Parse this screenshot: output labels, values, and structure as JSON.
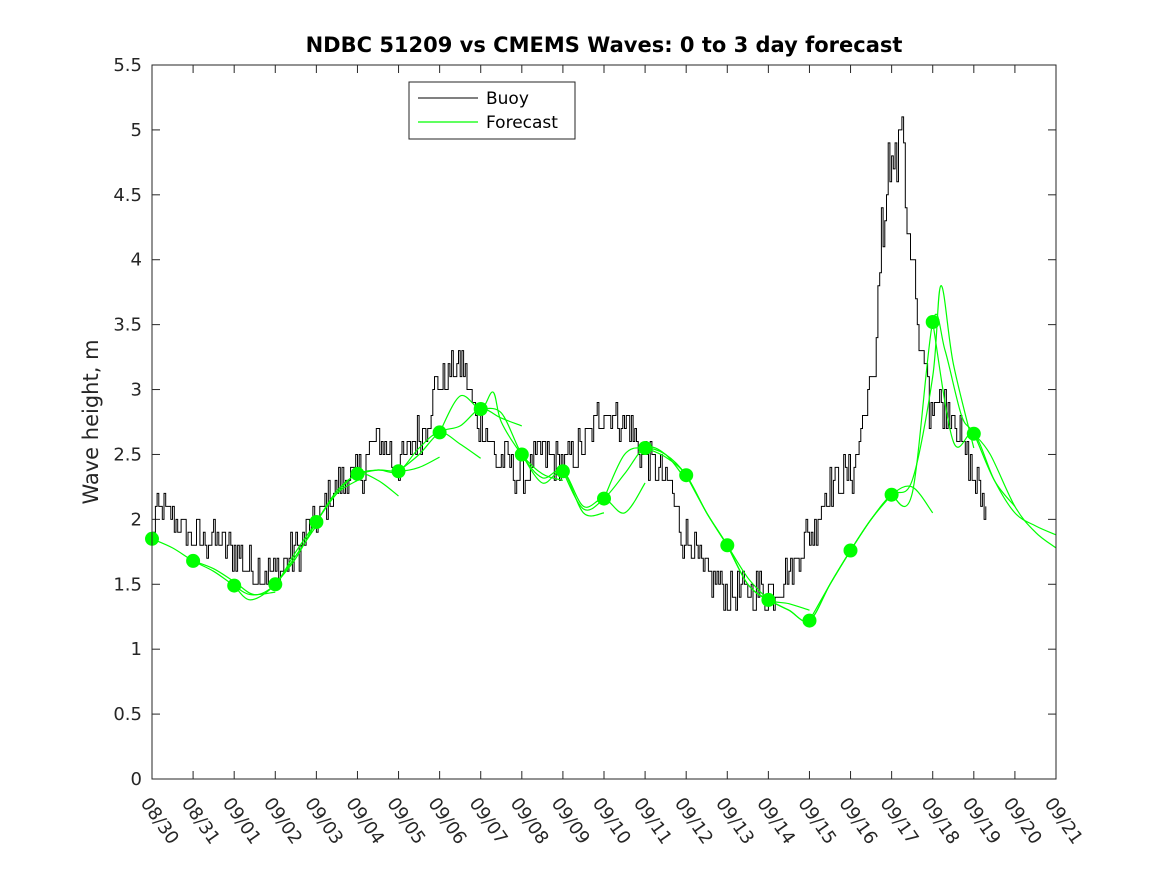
{
  "chart_data": {
    "type": "line",
    "title": "NDBC 51209 vs CMEMS Waves: 0 to 3 day forecast",
    "xlabel": "",
    "ylabel": "Wave height, m",
    "ylim": [
      0,
      5.5
    ],
    "yticks": [
      "0",
      "0.5",
      "1",
      "1.5",
      "2",
      "2.5",
      "3",
      "3.5",
      "4",
      "4.5",
      "5",
      "5.5"
    ],
    "xlim_days": [
      0,
      22
    ],
    "xtick_labels": [
      "08/30",
      "08/31",
      "09/01",
      "09/02",
      "09/03",
      "09/04",
      "09/05",
      "09/06",
      "09/07",
      "09/08",
      "09/09",
      "09/10",
      "09/11",
      "09/12",
      "09/13",
      "09/14",
      "09/15",
      "09/16",
      "09/17",
      "09/18",
      "09/19",
      "09/20",
      "09/21"
    ],
    "legend": {
      "position": "top-left",
      "entries": [
        "Buoy",
        "Forecast"
      ]
    },
    "colors": {
      "buoy": "#000000",
      "forecast": "#00ff00"
    },
    "buoy": {
      "name": "Buoy",
      "anchors": [
        [
          0,
          1.9
        ],
        [
          0.1,
          2.1
        ],
        [
          0.5,
          2.0
        ],
        [
          1.0,
          1.85
        ],
        [
          1.5,
          1.85
        ],
        [
          2.0,
          1.75
        ],
        [
          2.5,
          1.6
        ],
        [
          3.0,
          1.6
        ],
        [
          3.5,
          1.75
        ],
        [
          4.0,
          2.0
        ],
        [
          4.5,
          2.25
        ],
        [
          5.0,
          2.35
        ],
        [
          5.5,
          2.6
        ],
        [
          6.0,
          2.45
        ],
        [
          6.5,
          2.65
        ],
        [
          7.0,
          3.05
        ],
        [
          7.5,
          3.2
        ],
        [
          8.0,
          2.7
        ],
        [
          8.5,
          2.45
        ],
        [
          9.0,
          2.35
        ],
        [
          9.5,
          2.5
        ],
        [
          10.0,
          2.45
        ],
        [
          10.5,
          2.55
        ],
        [
          11.0,
          2.85
        ],
        [
          11.5,
          2.75
        ],
        [
          12.0,
          2.5
        ],
        [
          12.5,
          2.3
        ],
        [
          13.0,
          1.85
        ],
        [
          13.5,
          1.55
        ],
        [
          14.0,
          1.45
        ],
        [
          14.5,
          1.45
        ],
        [
          15.0,
          1.45
        ],
        [
          15.5,
          1.6
        ],
        [
          16.0,
          1.9
        ],
        [
          16.5,
          2.25
        ],
        [
          17.0,
          2.35
        ],
        [
          17.5,
          3.0
        ],
        [
          17.8,
          4.2
        ],
        [
          18.0,
          4.7
        ],
        [
          18.2,
          4.6
        ],
        [
          18.5,
          3.8
        ],
        [
          18.8,
          3.1
        ],
        [
          19.0,
          2.95
        ],
        [
          19.5,
          2.8
        ],
        [
          19.8,
          2.5
        ],
        [
          20.0,
          2.3
        ],
        [
          20.3,
          2.1
        ]
      ],
      "peak": [
        18.2,
        5.1
      ],
      "samples_per_day": 24,
      "noise_m": 0.1
    },
    "forecast_markers": [
      {
        "x": 0,
        "y": 1.85
      },
      {
        "x": 1,
        "y": 1.68
      },
      {
        "x": 2,
        "y": 1.49
      },
      {
        "x": 3,
        "y": 1.5
      },
      {
        "x": 4,
        "y": 1.98
      },
      {
        "x": 5,
        "y": 2.35
      },
      {
        "x": 6,
        "y": 2.37
      },
      {
        "x": 7,
        "y": 2.67
      },
      {
        "x": 8,
        "y": 2.85
      },
      {
        "x": 9,
        "y": 2.5
      },
      {
        "x": 10,
        "y": 2.37
      },
      {
        "x": 11,
        "y": 2.16
      },
      {
        "x": 12,
        "y": 2.55
      },
      {
        "x": 13,
        "y": 2.34
      },
      {
        "x": 14,
        "y": 1.8
      },
      {
        "x": 15,
        "y": 1.38
      },
      {
        "x": 16,
        "y": 1.22
      },
      {
        "x": 17,
        "y": 1.76
      },
      {
        "x": 18,
        "y": 2.19
      },
      {
        "x": 19,
        "y": 3.52
      },
      {
        "x": 20,
        "y": 2.66
      }
    ],
    "forecast_runs": [
      {
        "name": "Forecast",
        "points": [
          [
            0,
            1.85
          ],
          [
            0.5,
            1.78
          ],
          [
            1,
            1.68
          ],
          [
            1.5,
            1.6
          ],
          [
            2,
            1.49
          ],
          [
            2.4,
            1.42
          ],
          [
            3,
            1.44
          ]
        ]
      },
      {
        "name": "Forecast",
        "points": [
          [
            1,
            1.68
          ],
          [
            1.5,
            1.62
          ],
          [
            2,
            1.52
          ],
          [
            2.5,
            1.42
          ],
          [
            3,
            1.5
          ],
          [
            3.5,
            1.72
          ],
          [
            4,
            1.95
          ]
        ]
      },
      {
        "name": "Forecast",
        "points": [
          [
            2,
            1.49
          ],
          [
            2.4,
            1.38
          ],
          [
            3,
            1.5
          ],
          [
            3.5,
            1.75
          ],
          [
            4,
            1.98
          ],
          [
            4.5,
            2.2
          ],
          [
            5,
            2.3
          ]
        ]
      },
      {
        "name": "Forecast",
        "points": [
          [
            3,
            1.5
          ],
          [
            3.5,
            1.7
          ],
          [
            4,
            1.98
          ],
          [
            4.5,
            2.2
          ],
          [
            5,
            2.35
          ],
          [
            5.5,
            2.3
          ],
          [
            6,
            2.18
          ]
        ]
      },
      {
        "name": "Forecast",
        "points": [
          [
            4,
            1.98
          ],
          [
            4.5,
            2.22
          ],
          [
            5,
            2.35
          ],
          [
            5.5,
            2.38
          ],
          [
            6,
            2.37
          ],
          [
            6.5,
            2.4
          ],
          [
            7,
            2.48
          ]
        ]
      },
      {
        "name": "Forecast",
        "points": [
          [
            5,
            2.35
          ],
          [
            5.5,
            2.38
          ],
          [
            6,
            2.37
          ],
          [
            6.5,
            2.55
          ],
          [
            7,
            2.67
          ],
          [
            7.5,
            2.58
          ],
          [
            8,
            2.47
          ]
        ]
      },
      {
        "name": "Forecast",
        "points": [
          [
            6,
            2.37
          ],
          [
            6.5,
            2.5
          ],
          [
            7,
            2.67
          ],
          [
            7.5,
            2.72
          ],
          [
            8,
            2.85
          ],
          [
            8.5,
            2.78
          ],
          [
            9,
            2.72
          ]
        ]
      },
      {
        "name": "Forecast",
        "points": [
          [
            7,
            2.67
          ],
          [
            7.5,
            2.95
          ],
          [
            8,
            2.85
          ],
          [
            8.3,
            2.98
          ],
          [
            8.5,
            2.75
          ],
          [
            9,
            2.5
          ],
          [
            9.5,
            2.35
          ],
          [
            10,
            2.3
          ]
        ]
      },
      {
        "name": "Forecast",
        "points": [
          [
            8,
            2.85
          ],
          [
            8.5,
            2.82
          ],
          [
            9,
            2.5
          ],
          [
            9.5,
            2.32
          ],
          [
            10,
            2.37
          ],
          [
            10.5,
            2.05
          ],
          [
            11,
            2.05
          ]
        ]
      },
      {
        "name": "Forecast",
        "points": [
          [
            9,
            2.5
          ],
          [
            9.5,
            2.28
          ],
          [
            10,
            2.37
          ],
          [
            10.5,
            2.1
          ],
          [
            11,
            2.16
          ],
          [
            11.5,
            2.05
          ],
          [
            12,
            2.28
          ]
        ]
      },
      {
        "name": "Forecast",
        "points": [
          [
            10,
            2.37
          ],
          [
            10.5,
            2.08
          ],
          [
            11,
            2.16
          ],
          [
            11.5,
            2.35
          ],
          [
            12,
            2.55
          ],
          [
            12.5,
            2.5
          ],
          [
            13,
            2.3
          ]
        ]
      },
      {
        "name": "Forecast",
        "points": [
          [
            11,
            2.16
          ],
          [
            11.5,
            2.5
          ],
          [
            12,
            2.55
          ],
          [
            12.5,
            2.5
          ],
          [
            13,
            2.34
          ],
          [
            13.5,
            2.05
          ],
          [
            14,
            1.8
          ]
        ]
      },
      {
        "name": "Forecast",
        "points": [
          [
            12,
            2.55
          ],
          [
            12.5,
            2.48
          ],
          [
            13,
            2.34
          ],
          [
            13.5,
            2.05
          ],
          [
            14,
            1.8
          ],
          [
            14.5,
            1.55
          ],
          [
            15,
            1.38
          ]
        ]
      },
      {
        "name": "Forecast",
        "points": [
          [
            13,
            2.34
          ],
          [
            13.5,
            2.05
          ],
          [
            14,
            1.8
          ],
          [
            14.5,
            1.5
          ],
          [
            15,
            1.38
          ],
          [
            15.5,
            1.35
          ],
          [
            16,
            1.3
          ]
        ]
      },
      {
        "name": "Forecast",
        "points": [
          [
            14,
            1.8
          ],
          [
            14.5,
            1.5
          ],
          [
            15,
            1.38
          ],
          [
            15.5,
            1.3
          ],
          [
            16,
            1.22
          ],
          [
            16.5,
            1.5
          ],
          [
            17,
            1.76
          ]
        ]
      },
      {
        "name": "Forecast",
        "points": [
          [
            15,
            1.38
          ],
          [
            15.5,
            1.3
          ],
          [
            16,
            1.22
          ],
          [
            16.5,
            1.5
          ],
          [
            17,
            1.76
          ],
          [
            17.5,
            2.0
          ],
          [
            18,
            2.19
          ]
        ]
      },
      {
        "name": "Forecast",
        "points": [
          [
            16,
            1.22
          ],
          [
            16.5,
            1.5
          ],
          [
            17,
            1.76
          ],
          [
            17.5,
            2.0
          ],
          [
            18,
            2.19
          ],
          [
            18.5,
            2.25
          ],
          [
            19,
            2.05
          ]
        ]
      },
      {
        "name": "Forecast",
        "points": [
          [
            17,
            1.76
          ],
          [
            17.5,
            2.0
          ],
          [
            18,
            2.19
          ],
          [
            18.5,
            2.3
          ],
          [
            19,
            3.1
          ],
          [
            19.2,
            3.8
          ],
          [
            19.5,
            3.2
          ],
          [
            20,
            2.55
          ]
        ]
      },
      {
        "name": "Forecast",
        "points": [
          [
            18,
            2.19
          ],
          [
            18.5,
            2.2
          ],
          [
            19,
            3.52
          ],
          [
            19.3,
            3.3
          ],
          [
            19.7,
            2.8
          ],
          [
            20,
            2.66
          ],
          [
            20.5,
            2.3
          ],
          [
            21,
            2.1
          ]
        ]
      },
      {
        "name": "Forecast",
        "points": [
          [
            19,
            3.52
          ],
          [
            19.5,
            2.6
          ],
          [
            20,
            2.66
          ],
          [
            20.5,
            2.3
          ],
          [
            21,
            2.05
          ],
          [
            21.5,
            1.95
          ],
          [
            22,
            1.88
          ]
        ]
      },
      {
        "name": "Forecast",
        "points": [
          [
            20,
            2.66
          ],
          [
            20.4,
            2.5
          ],
          [
            21,
            2.1
          ],
          [
            21.5,
            1.9
          ],
          [
            22,
            1.78
          ]
        ]
      }
    ]
  }
}
